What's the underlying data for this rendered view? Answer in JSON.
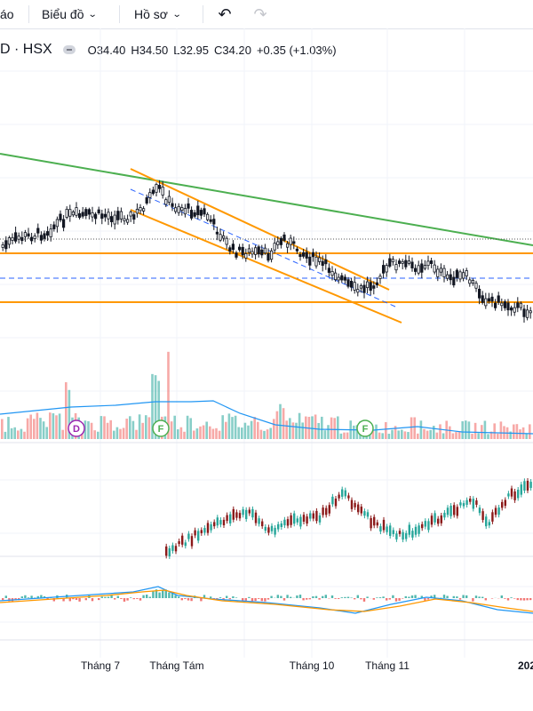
{
  "toolbar": {
    "partial_item": "áo",
    "chart_menu": "Biểu đồ",
    "profile_menu": "Hồ sơ",
    "undo_icon": "undo-icon",
    "redo_icon": "redo-icon"
  },
  "legend": {
    "symbol": "D · HSX",
    "open": "O34.40",
    "high": "H34.50",
    "low": "L32.95",
    "close": "C34.20",
    "change": "+0.35 (+1.03%)"
  },
  "events": [
    {
      "letter": "D",
      "color": "#9c27b0",
      "kind": "dividend"
    },
    {
      "letter": "F",
      "color": "#4caf50",
      "kind": "financial"
    },
    {
      "letter": "F",
      "color": "#4caf50",
      "kind": "financial"
    }
  ],
  "x_axis": {
    "labels": [
      "Tháng 7",
      "Tháng Tám",
      "Tháng 10",
      "Tháng 11"
    ],
    "year_label": "202"
  },
  "colors": {
    "up": "#26a69a",
    "down": "#ef5350",
    "trend_green": "#4caf50",
    "channel_orange": "#ff9800",
    "dashed_blue": "#2962ff",
    "volume_ma": "#2196f3"
  },
  "chart_data": {
    "type": "candlestick",
    "symbol": "D · HSX",
    "last_bar": {
      "open": 34.4,
      "high": 34.5,
      "low": 32.95,
      "close": 34.2,
      "change": 0.35,
      "change_pct": 1.03
    },
    "panes": [
      "price",
      "volume",
      "indicator",
      "macd"
    ]
  }
}
